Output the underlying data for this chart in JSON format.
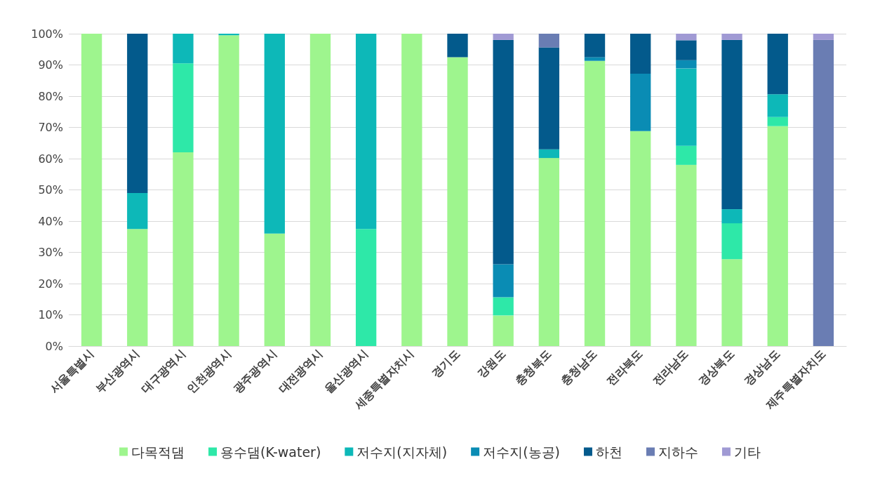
{
  "chart_data": {
    "type": "bar",
    "stacked": true,
    "categories": [
      "서울특별시",
      "부산광역시",
      "대구광역시",
      "인천광역시",
      "광주광역시",
      "대전광역시",
      "울산광역시",
      "세종특별자치시",
      "경기도",
      "강원도",
      "충청북도",
      "충청남도",
      "전라북도",
      "전라남도",
      "경상북도",
      "경상남도",
      "제주특별자치도"
    ],
    "series": [
      {
        "name": "다목적댐",
        "color": "#9ef58e",
        "values": [
          100,
          37.5,
          62,
          99.5,
          36,
          100,
          0,
          100,
          92.5,
          9.8,
          60.2,
          91.3,
          68.8,
          58,
          27.8,
          70.4,
          0
        ]
      },
      {
        "name": "용수댐(K-water)",
        "color": "#2ee8a8",
        "values": [
          0,
          0,
          28.5,
          0,
          0,
          0,
          37.5,
          0,
          0,
          5.8,
          0,
          0,
          0,
          6.1,
          11.5,
          2.9,
          0
        ]
      },
      {
        "name": "저수지(지자체)",
        "color": "#0db8b8",
        "values": [
          0,
          11.5,
          9.5,
          0.5,
          64,
          0,
          62.5,
          0,
          0,
          0,
          2.8,
          0,
          0,
          24.8,
          4.5,
          7.3,
          0
        ]
      },
      {
        "name": "저수지(농공)",
        "color": "#0a8cb4",
        "values": [
          0,
          0,
          0,
          0,
          0,
          0,
          0,
          0,
          0,
          10.6,
          0,
          1.2,
          18.4,
          2.6,
          0,
          0,
          0
        ]
      },
      {
        "name": "하천",
        "color": "#035a8c",
        "values": [
          0,
          51,
          0,
          0,
          0,
          0,
          0,
          0,
          7.5,
          71.8,
          32.6,
          7.5,
          12.8,
          6.4,
          54.2,
          19.4,
          0
        ]
      },
      {
        "name": "지하수",
        "color": "#6a7db3",
        "values": [
          0,
          0,
          0,
          0,
          0,
          0,
          0,
          0,
          0,
          0,
          4.4,
          0,
          0,
          0,
          0,
          0,
          98
        ]
      },
      {
        "name": "기타",
        "color": "#a09ad4",
        "values": [
          0,
          0,
          0,
          0,
          0,
          0,
          0,
          0,
          0,
          2,
          0,
          0,
          0,
          2.1,
          2,
          0,
          2
        ]
      }
    ],
    "ylim": [
      0,
      100
    ],
    "yticks": [
      {
        "value": 0,
        "label": "0%"
      },
      {
        "value": 10,
        "label": "10%"
      },
      {
        "value": 20,
        "label": "20%"
      },
      {
        "value": 30,
        "label": "30%"
      },
      {
        "value": 40,
        "label": "40%"
      },
      {
        "value": 50,
        "label": "50%"
      },
      {
        "value": 60,
        "label": "60%"
      },
      {
        "value": 70,
        "label": "70%"
      },
      {
        "value": 80,
        "label": "80%"
      },
      {
        "value": 90,
        "label": "90%"
      },
      {
        "value": 100,
        "label": "100%"
      }
    ],
    "grid": "y",
    "legend": "bottom"
  }
}
